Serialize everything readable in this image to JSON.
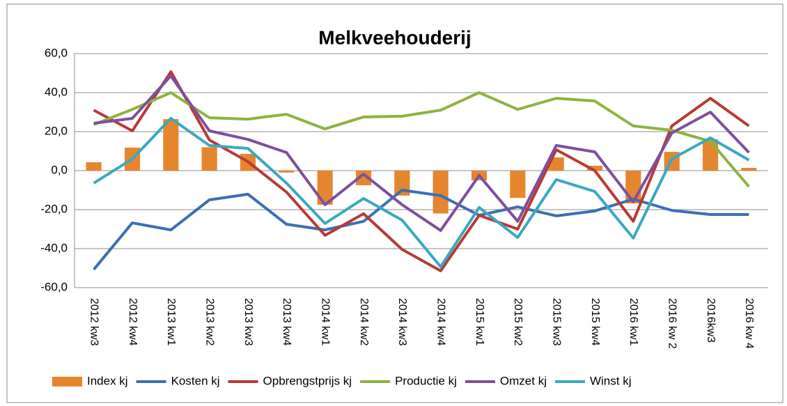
{
  "chart_data": {
    "type": "combo",
    "title": "Melkveehouderij",
    "categories": [
      "2012 kw3",
      "2012 kw4",
      "2013 kw1",
      "2013 kw2",
      "2013 kw3",
      "2013 kw4",
      "2014 kw1",
      "2014 kw2",
      "2014 kw3",
      "2014 kw4",
      "2015 kw1",
      "2015 kw2",
      "2015 kw3",
      "2015 kw4",
      "2016 kw1",
      "2016 kw 2",
      "2016kw3",
      "2016 kw 4"
    ],
    "series": [
      {
        "name": "Index kj",
        "type": "bar",
        "color": "#e5862f",
        "values": [
          4.3,
          11.8,
          26.4,
          12,
          8.6,
          -1,
          -17.5,
          -7.5,
          -12.8,
          -22,
          -5,
          -14,
          6.8,
          2.5,
          -16.8,
          9.6,
          16,
          1.4
        ]
      },
      {
        "name": "Kosten kj",
        "type": "line",
        "color": "#3a6fb5",
        "values": [
          -50.7,
          -26.8,
          -30.4,
          -15,
          -12.1,
          -27.5,
          -30.4,
          -26,
          -10,
          -12.8,
          -22.9,
          -18.6,
          -23.2,
          -20.7,
          -14.6,
          -20.4,
          -22.5,
          -22.5
        ]
      },
      {
        "name": "Opbrengstprijs kj",
        "type": "line",
        "color": "#b83a33",
        "values": [
          31,
          20.4,
          50.7,
          15.7,
          4.6,
          -11,
          -33.2,
          -22.1,
          -40.4,
          -51.4,
          -22.9,
          -30,
          10.7,
          0,
          -26,
          22.9,
          37.1,
          22.9
        ]
      },
      {
        "name": "Productie kj",
        "type": "line",
        "color": "#8db33e",
        "values": [
          23.6,
          31.4,
          40,
          27.1,
          26.4,
          28.9,
          21.4,
          27.5,
          27.9,
          31,
          40,
          31.4,
          37.1,
          35.7,
          22.9,
          20.7,
          15,
          -8.2
        ]
      },
      {
        "name": "Omzet kj",
        "type": "line",
        "color": "#7d4f9e",
        "values": [
          24.3,
          26.8,
          48.6,
          20.4,
          16,
          9.3,
          -17.5,
          -1.8,
          -17.5,
          -30.7,
          -2.5,
          -26,
          12.9,
          9.6,
          -16,
          19.3,
          30,
          9.3
        ]
      },
      {
        "name": "Winst kj",
        "type": "line",
        "color": "#3aa8c1",
        "values": [
          -6.4,
          6,
          26.8,
          12.9,
          11.4,
          -6.4,
          -27.1,
          -14.3,
          -25.4,
          -49.3,
          -18.9,
          -34.3,
          -4.6,
          -10.7,
          -34.6,
          6,
          16.8,
          5.4
        ]
      }
    ],
    "ylim": [
      -60,
      60
    ],
    "yticks": [
      {
        "value": -60,
        "label": "-60,0"
      },
      {
        "value": -40,
        "label": "-40,0"
      },
      {
        "value": -20,
        "label": "-20,0"
      },
      {
        "value": 0,
        "label": "0,0"
      },
      {
        "value": 20,
        "label": "20,0"
      },
      {
        "value": 40,
        "label": "40,0"
      },
      {
        "value": 60,
        "label": "60,0"
      }
    ],
    "grid": true,
    "legend": "bottom"
  }
}
